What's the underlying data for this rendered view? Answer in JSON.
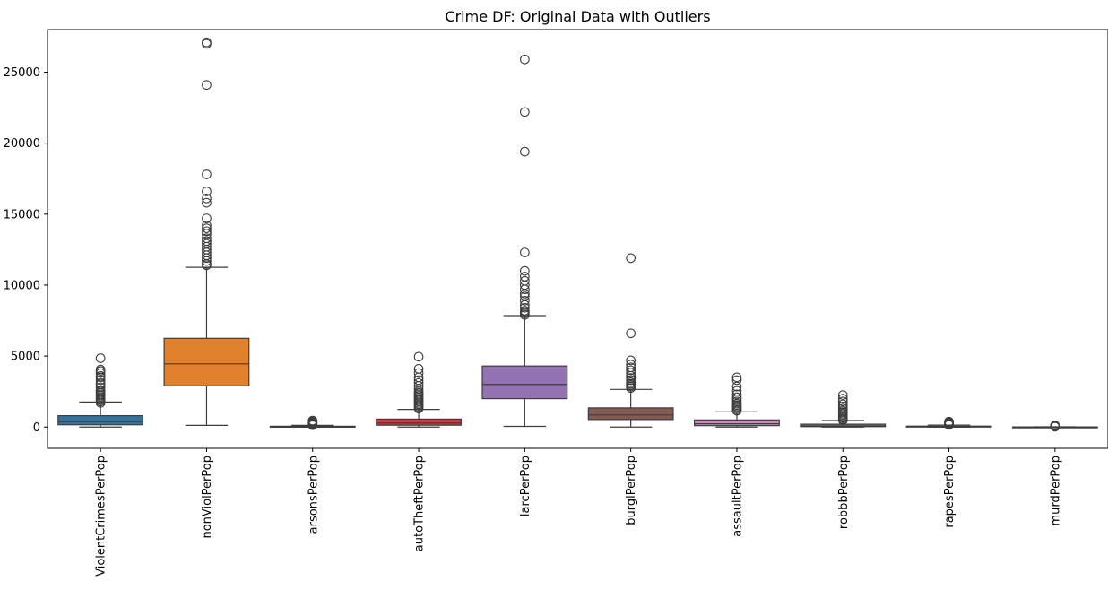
{
  "chart_data": {
    "type": "box",
    "title": "Crime DF: Original Data with Outliers",
    "xlabel": "",
    "ylabel": "",
    "ylim": [
      -1500,
      28000
    ],
    "yticks": [
      0,
      5000,
      10000,
      15000,
      20000,
      25000
    ],
    "ytick_labels": [
      "0",
      "5000",
      "10000",
      "15000",
      "20000",
      "25000"
    ],
    "grid": false,
    "legend": "none",
    "categories": [
      "ViolentCrimesPerPop",
      "nonViolPerPop",
      "arsonsPerPop",
      "autoTheftPerPop",
      "larcPerPop",
      "burglPerPop",
      "assaultPerPop",
      "robbbPerPop",
      "rapesPerPop",
      "murdPerPop"
    ],
    "series": [
      {
        "category": "ViolentCrimesPerPop",
        "color": "#3274a1",
        "whisker_low": 0,
        "q1": 160,
        "median": 380,
        "q3": 800,
        "whisker_high": 1760,
        "outliers": [
          1700,
          1800,
          1900,
          2000,
          2100,
          2200,
          2300,
          2400,
          2500,
          2600,
          2800,
          3000,
          3100,
          3300,
          3500,
          3600,
          3800,
          3950,
          4050,
          4850
        ]
      },
      {
        "category": "nonViolPerPop",
        "color": "#e1812c",
        "whisker_low": 120,
        "q1": 2900,
        "median": 4450,
        "q3": 6250,
        "whisker_high": 11250,
        "outliers": [
          11400,
          11500,
          11700,
          11900,
          12100,
          12300,
          12500,
          12700,
          12900,
          13100,
          13300,
          13600,
          13800,
          14000,
          14200,
          14700,
          15800,
          16100,
          16600,
          17800,
          24100,
          27000,
          27100
        ]
      },
      {
        "category": "arsonsPerPop",
        "color": "#3a923a",
        "whisker_low": 0,
        "q1": 10,
        "median": 25,
        "q3": 55,
        "whisker_high": 120,
        "outliers": [
          130,
          160,
          200,
          250,
          300,
          350,
          400,
          450
        ]
      },
      {
        "category": "autoTheftPerPop",
        "color": "#c03d3e",
        "whisker_low": 0,
        "q1": 130,
        "median": 280,
        "q3": 560,
        "whisker_high": 1240,
        "outliers": [
          1300,
          1400,
          1500,
          1600,
          1700,
          1800,
          1900,
          2000,
          2100,
          2200,
          2300,
          2400,
          2500,
          2700,
          2900,
          3100,
          3300,
          3500,
          3800,
          4100,
          4950
        ]
      },
      {
        "category": "larcPerPop",
        "color": "#9372b2",
        "whisker_low": 50,
        "q1": 2000,
        "median": 3000,
        "q3": 4300,
        "whisker_high": 7850,
        "outliers": [
          7900,
          8000,
          8100,
          8200,
          8400,
          8600,
          8900,
          9200,
          9400,
          9700,
          10000,
          10300,
          10600,
          11000,
          12300,
          19400,
          22200,
          25900
        ]
      },
      {
        "category": "burglPerPop",
        "color": "#845b53",
        "whisker_low": 0,
        "q1": 530,
        "median": 850,
        "q3": 1350,
        "whisker_high": 2650,
        "outliers": [
          2750,
          2850,
          2950,
          3050,
          3150,
          3300,
          3450,
          3600,
          3800,
          4000,
          4200,
          4400,
          4700,
          6600,
          11900
        ]
      },
      {
        "category": "assaultPerPop",
        "color": "#d684bd",
        "whisker_low": 0,
        "q1": 100,
        "median": 230,
        "q3": 500,
        "whisker_high": 1070,
        "outliers": [
          1150,
          1250,
          1350,
          1450,
          1550,
          1650,
          1800,
          1950,
          2100,
          2300,
          2550,
          2850,
          3300,
          3500
        ]
      },
      {
        "category": "robbbPerPop",
        "color": "#7f7f7f",
        "whisker_low": 0,
        "q1": 30,
        "median": 80,
        "q3": 200,
        "whisker_high": 460,
        "outliers": [
          480,
          550,
          650,
          750,
          850,
          950,
          1050,
          1150,
          1300,
          1450,
          1600,
          1800,
          2000,
          2250
        ]
      },
      {
        "category": "rapesPerPop",
        "color": "#a9aa35",
        "whisker_low": 0,
        "q1": 15,
        "median": 35,
        "q3": 65,
        "whisker_high": 140,
        "outliers": [
          150,
          180,
          210,
          240,
          270,
          300,
          340,
          380
        ]
      },
      {
        "category": "murdPerPop",
        "color": "#2ed0db",
        "whisker_low": 0,
        "q1": 1,
        "median": 4,
        "q3": 9,
        "whisker_high": 20,
        "outliers": [
          25,
          35,
          45,
          55,
          65,
          80,
          95,
          110
        ]
      }
    ]
  }
}
